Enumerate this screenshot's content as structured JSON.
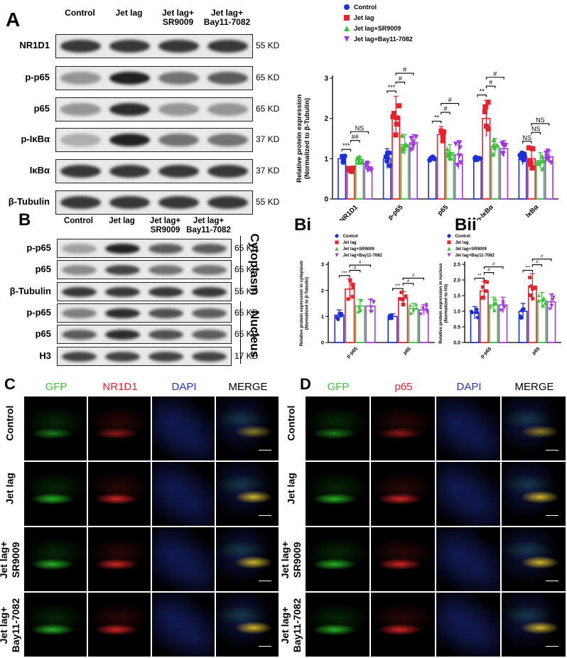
{
  "panel_A": {
    "letter": "A",
    "columns": [
      "Control",
      "Jet lag",
      "Jet lag+\nSR9009",
      "Jet lag+\nBay11-7082"
    ],
    "rows": [
      {
        "label": "NR1D1",
        "kd": "55 KD",
        "intensity": [
          0.85,
          0.85,
          0.85,
          0.85
        ]
      },
      {
        "label": "p-p65",
        "kd": "65 KD",
        "intensity": [
          0.45,
          0.95,
          0.6,
          0.7
        ]
      },
      {
        "label": "p65",
        "kd": "65 KD",
        "intensity": [
          0.45,
          0.9,
          0.45,
          0.45
        ]
      },
      {
        "label": "p-IκBα",
        "kd": "37 KD",
        "intensity": [
          0.35,
          0.95,
          0.6,
          0.6
        ]
      },
      {
        "label": "IκBα",
        "kd": "37 KD",
        "intensity": [
          0.85,
          0.85,
          0.85,
          0.85
        ]
      },
      {
        "label": "β-Tubulin",
        "kd": "55 KD",
        "intensity": [
          0.85,
          0.85,
          0.85,
          0.85
        ]
      }
    ]
  },
  "panel_B": {
    "letter": "B",
    "columns": [
      "Control",
      "Jet lag",
      "Jet lag+\nSR9009",
      "Jet lag+\nBay11-7082"
    ],
    "rows": [
      {
        "label": "p-p65",
        "kd": "65 KD",
        "intensity": [
          0.4,
          0.95,
          0.7,
          0.7
        ]
      },
      {
        "label": "p65",
        "kd": "65 KD",
        "intensity": [
          0.5,
          0.8,
          0.6,
          0.6
        ]
      },
      {
        "label": "β-Tubulin",
        "kd": "55 KD",
        "intensity": [
          0.85,
          0.85,
          0.85,
          0.85
        ]
      },
      {
        "label": "p-p65",
        "kd": "65 KD",
        "intensity": [
          0.55,
          0.9,
          0.75,
          0.7
        ]
      },
      {
        "label": "p65",
        "kd": "65 KD",
        "intensity": [
          0.7,
          0.9,
          0.75,
          0.7
        ]
      },
      {
        "label": "H3",
        "kd": "17 KD",
        "intensity": [
          0.8,
          0.8,
          0.8,
          0.8
        ]
      }
    ],
    "section_cytoplasm": "Cytoplasm",
    "section_nucleus": "Nucleus"
  },
  "colors": {
    "control": "#1c2fd8",
    "jetlag": "#e8212a",
    "sr9009": "#3ec13e",
    "bay": "#a238e0"
  },
  "legend": [
    "Control",
    "Jet lag",
    "Jet lag+SR9009",
    "Jet lag+Bay11-7082"
  ],
  "chart_data": [
    {
      "type": "bar",
      "panel": "A",
      "ylabel": "Relative protein expression\n(Normalized to β-Tubulin)",
      "ylim": [
        0,
        3
      ],
      "yticks": [
        0,
        1,
        2,
        3
      ],
      "categories": [
        "NR1D1",
        "p-p65",
        "p65",
        "p-IκBα",
        "IκBα"
      ],
      "series": [
        {
          "name": "Control",
          "values": [
            1.0,
            1.0,
            1.0,
            1.0,
            1.0
          ],
          "err": [
            0.1,
            0.25,
            0.05,
            0.05,
            0.15
          ]
        },
        {
          "name": "Jet lag",
          "values": [
            0.72,
            2.05,
            1.6,
            2.0,
            1.0
          ],
          "err": [
            0.05,
            0.5,
            0.2,
            0.45,
            0.3
          ]
        },
        {
          "name": "Jet lag+SR9009",
          "values": [
            0.98,
            1.35,
            1.15,
            1.3,
            0.95
          ],
          "err": [
            0.08,
            0.25,
            0.2,
            0.2,
            0.2
          ]
        },
        {
          "name": "Jet lag+Bay11-7082",
          "values": [
            0.8,
            1.4,
            1.1,
            1.25,
            1.05
          ],
          "err": [
            0.1,
            0.2,
            0.35,
            0.2,
            0.15
          ]
        }
      ],
      "annotations": [
        "***",
        "##",
        "NS",
        "***",
        "#",
        "#",
        "**",
        "#",
        "#",
        "**",
        "#",
        "#",
        "NS",
        "NS",
        "NS"
      ]
    },
    {
      "type": "bar",
      "panel": "Bi",
      "ylabel": "Relative protein expression in cytoplasm\n(Normalized to β-Tubulin)",
      "ylim": [
        0,
        3
      ],
      "yticks": [
        0,
        1,
        2,
        3
      ],
      "categories": [
        "p-p65",
        "p65"
      ],
      "series": [
        {
          "name": "Control",
          "values": [
            1.05,
            1.0
          ],
          "err": [
            0.2,
            0.1
          ]
        },
        {
          "name": "Jet lag",
          "values": [
            2.05,
            1.7
          ],
          "err": [
            0.4,
            0.25
          ]
        },
        {
          "name": "Jet lag+SR9009",
          "values": [
            1.4,
            1.3
          ],
          "err": [
            0.25,
            0.2
          ]
        },
        {
          "name": "Jet lag+Bay11-7082",
          "values": [
            1.4,
            1.25
          ],
          "err": [
            0.25,
            0.2
          ]
        }
      ],
      "annotations": [
        "***",
        "#",
        "#",
        "***",
        "#",
        "#"
      ]
    },
    {
      "type": "bar",
      "panel": "Bii",
      "ylabel": "Relative protein expression in nucleus\n(Normalized to H3)",
      "ylim": [
        0,
        2.5
      ],
      "yticks": [
        0.0,
        0.5,
        1.0,
        1.5,
        2.0,
        2.5
      ],
      "categories": [
        "p-p65",
        "p65"
      ],
      "series": [
        {
          "name": "Control",
          "values": [
            0.95,
            1.0
          ],
          "err": [
            0.2,
            0.25
          ]
        },
        {
          "name": "Jet lag",
          "values": [
            1.65,
            1.8
          ],
          "err": [
            0.3,
            0.4
          ]
        },
        {
          "name": "Jet lag+SR9009",
          "values": [
            1.2,
            1.35
          ],
          "err": [
            0.25,
            0.25
          ]
        },
        {
          "name": "Jet lag+Bay11-7082",
          "values": [
            1.2,
            1.3
          ],
          "err": [
            0.25,
            0.25
          ]
        }
      ],
      "annotations": [
        "**",
        "#",
        "#",
        "***",
        "#",
        "#"
      ]
    }
  ],
  "panel_C": {
    "letter": "C",
    "channels": [
      "GFP",
      "NR1D1",
      "DAPI",
      "MERGE"
    ],
    "rows": [
      "Control",
      "Jet lag",
      "Jet lag+\nSR9009",
      "Jet lag+\nBay11-7082"
    ]
  },
  "panel_D": {
    "letter": "D",
    "channels": [
      "GFP",
      "p65",
      "DAPI",
      "MERGE"
    ],
    "rows": [
      "Control",
      "Jet lag",
      "Jet lag+\nSR9009",
      "Jet lag+\nBay11-7082"
    ]
  },
  "channel_colors": [
    "#3ec13e",
    "#e8212a",
    "#2433c9",
    "#000000"
  ]
}
